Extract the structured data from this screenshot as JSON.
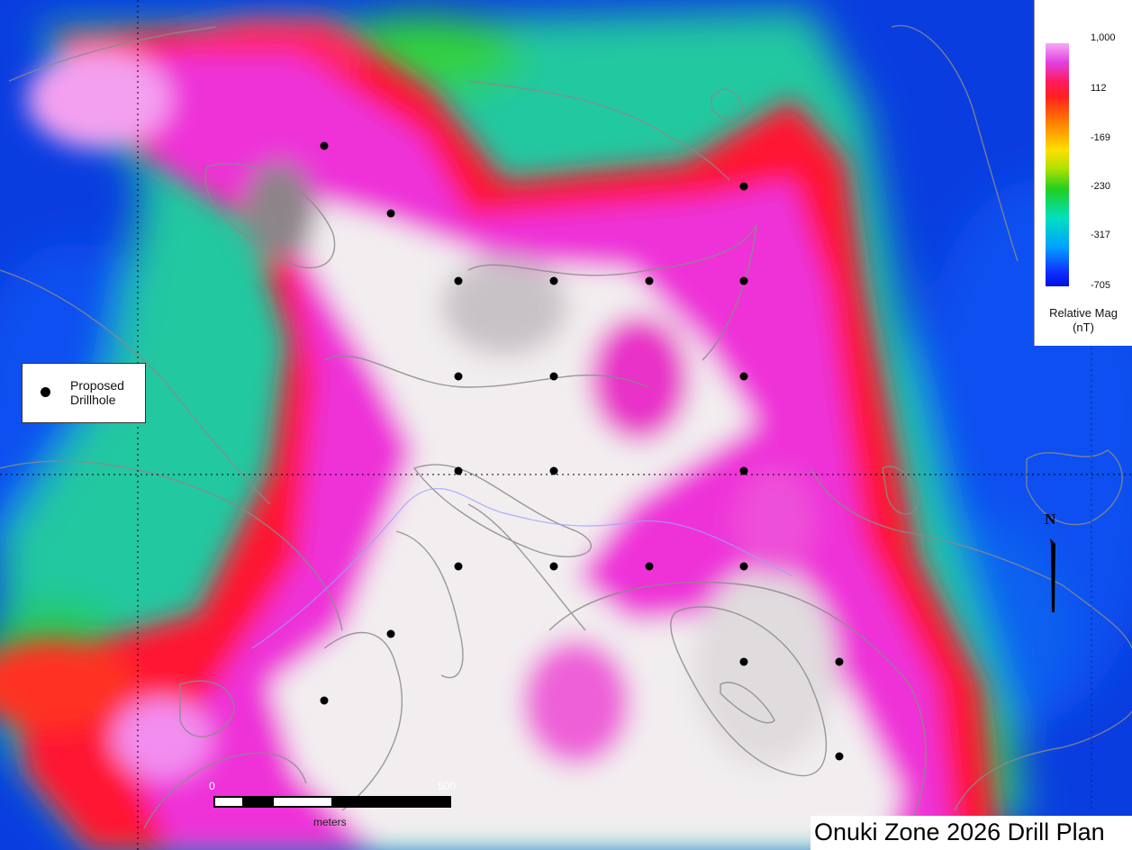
{
  "title": "Onuki Zone 2026 Drill Plan",
  "legend": {
    "label": "Proposed\nDrillhole",
    "symbol": "filled-black-circle"
  },
  "color_scale": {
    "title": "Relative Mag\n(nT)",
    "ticks": [
      "1,000",
      "112",
      "-169",
      "-230",
      "-317",
      "-705"
    ],
    "palette": [
      "#f7a8f5",
      "#e040e0",
      "#ff2020",
      "#ff7a00",
      "#ffe000",
      "#20d020",
      "#00e0c0",
      "#00a0ff",
      "#0010e0"
    ]
  },
  "scale_bar": {
    "start": "0",
    "end": "500",
    "unit": "meters"
  },
  "north_arrow": {
    "label": "N"
  },
  "drillholes": [
    {
      "row": "A",
      "col": 1
    },
    {
      "row": "A",
      "col": 2
    },
    {
      "row": "A",
      "col": 3
    },
    {
      "row": "B",
      "col": 1
    },
    {
      "row": "B",
      "col": 2
    },
    {
      "row": "B",
      "col": 3
    },
    {
      "row": "B",
      "col": 4
    },
    {
      "row": "C",
      "col": 1
    },
    {
      "row": "C",
      "col": 2
    },
    {
      "row": "C",
      "col": 3
    },
    {
      "row": "D",
      "col": 1
    },
    {
      "row": "D",
      "col": 2
    },
    {
      "row": "D",
      "col": 3
    },
    {
      "row": "E",
      "col": 1
    },
    {
      "row": "E",
      "col": 2
    },
    {
      "row": "E",
      "col": 3
    },
    {
      "row": "E",
      "col": 4
    },
    {
      "row": "F",
      "col": 1
    },
    {
      "row": "F",
      "col": 2
    },
    {
      "row": "F",
      "col": 3
    },
    {
      "row": "F",
      "col": 4
    },
    {
      "row": "G",
      "col": 1
    }
  ]
}
